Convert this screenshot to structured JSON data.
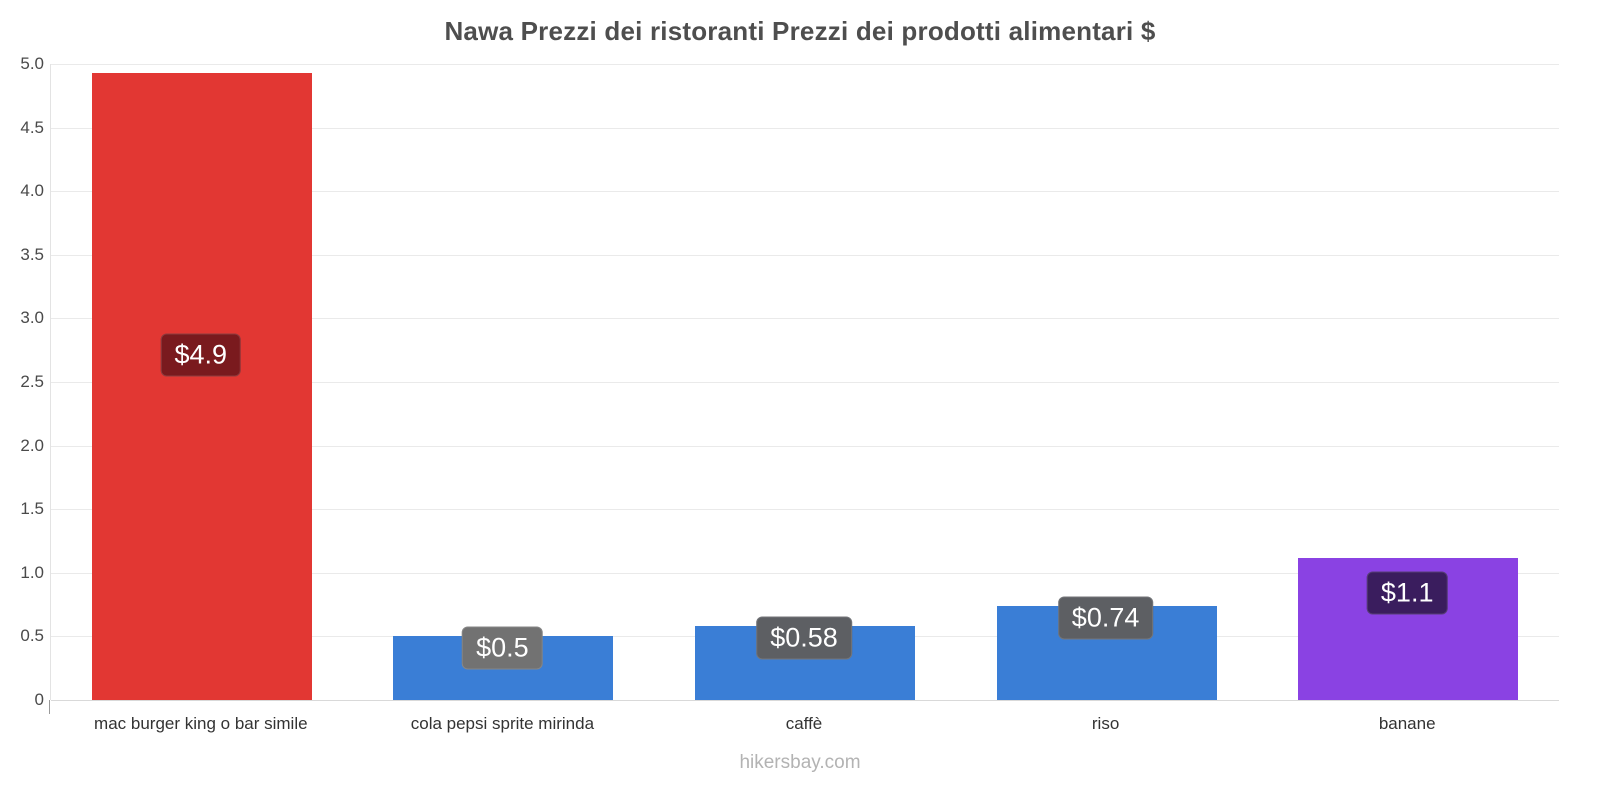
{
  "title": "Nawa Prezzi dei ristoranti Prezzi dei prodotti alimentari $",
  "footer": {
    "text": "hikersbay.com"
  },
  "chart_data": {
    "type": "bar",
    "title": "Nawa Prezzi dei ristoranti Prezzi dei prodotti alimentari $",
    "categories": [
      "mac burger king o bar simile",
      "cola pepsi sprite mirinda",
      "caffè",
      "riso",
      "banane"
    ],
    "values": [
      4.93,
      0.5,
      0.58,
      0.74,
      1.12
    ],
    "value_labels": [
      "$4.9",
      "$0.5",
      "$0.58",
      "$0.74",
      "$1.1"
    ],
    "bar_colors": [
      "#e23733",
      "#3a7ed6",
      "#3a7ed6",
      "#3a7ed6",
      "#8a42e3"
    ],
    "label_box_colors": [
      "#7a1a1e",
      "#727272",
      "#5d5f63",
      "#5d5f63",
      "#3a1d5e"
    ],
    "xlabel": "",
    "ylabel": "",
    "ylim": [
      0,
      5.0
    ],
    "ytick_step": 0.5,
    "ytick_labels": [
      "5.0",
      "4.5",
      "4.0",
      "3.5",
      "3.0",
      "2.5",
      "2.0",
      "1.5",
      "1.0",
      "0.5",
      "0"
    ],
    "grid": true,
    "legend": "none"
  }
}
